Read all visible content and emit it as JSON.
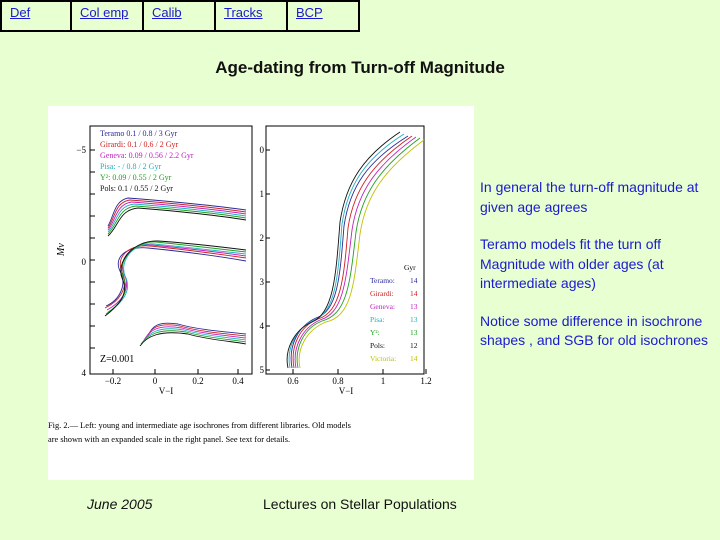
{
  "nav": {
    "items": [
      {
        "label": "Def"
      },
      {
        "label": "Col emp"
      },
      {
        "label": "Calib"
      },
      {
        "label": "Tracks"
      },
      {
        "label": "BCP"
      }
    ]
  },
  "title": "Age-dating from Turn-off Magnitude",
  "figure": {
    "legend_left": [
      {
        "name": "Teramo",
        "text": "0.1   / 0.8  / 3   Gyr",
        "color": "#2a2a9a"
      },
      {
        "name": "Girardi:",
        "text": "0.1   / 0.6  / 2   Gyr",
        "color": "#d02020"
      },
      {
        "name": "Geneva:",
        "text": "0.09 / 0.56 / 2.2 Gyr",
        "color": "#c020c0"
      },
      {
        "name": "Pisa:",
        "text": "  -   / 0.8  / 2   Gyr",
        "color": "#20b0c0"
      },
      {
        "name": "Y²:",
        "text": "0.09 / 0.55 / 2   Gyr",
        "color": "#20a020"
      },
      {
        "name": "Pols:",
        "text": "0.1   / 0.55 / 2   Gyr",
        "color": "#111111"
      }
    ],
    "legend_right_header": "Gyr",
    "legend_right": [
      {
        "name": "Teramo:",
        "value": "14",
        "color": "#2a2a9a"
      },
      {
        "name": "Girardi:",
        "value": "14",
        "color": "#d02020"
      },
      {
        "name": "Geneva:",
        "value": "13",
        "color": "#c020c0"
      },
      {
        "name": "Pisa:",
        "value": "13",
        "color": "#20b0c0"
      },
      {
        "name": "Y²:",
        "value": "13",
        "color": "#20a020"
      },
      {
        "name": "Pols:",
        "value": "12",
        "color": "#111111"
      },
      {
        "name": "Victoria:",
        "value": "14",
        "color": "#c0c000"
      }
    ],
    "z_label": "Z=0.001",
    "y_label": "Mv",
    "left_x_label": "V−I",
    "right_x_label": "V−I",
    "left_x_ticks": [
      "−0.2",
      "0",
      "0.2",
      "0.4"
    ],
    "right_x_ticks": [
      "0.6",
      "0.8",
      "1",
      "1.2"
    ],
    "left_y_ticks": [
      "−5",
      "−4",
      "−3",
      "−2",
      "−1",
      "0",
      "1",
      "2",
      "3",
      "4"
    ],
    "right_y_ticks": [
      "0",
      "1",
      "2",
      "3",
      "4",
      "5"
    ],
    "caption_line1": "Fig. 2.— Left: young and intermediate age isochrones from different libraries. Old models",
    "caption_line2": "are shown with an expanded scale in the right panel. See text for details."
  },
  "bullets": [
    "In general the turn-off magnitude at given age agrees",
    "Teramo models fit the turn off Magnitude with  older ages (at intermediate ages)",
    "Notice some difference in isochrone shapes , and SGB for old isochrones"
  ],
  "footer": {
    "date": "June 2005",
    "lecture": "Lectures on Stellar Populations"
  }
}
